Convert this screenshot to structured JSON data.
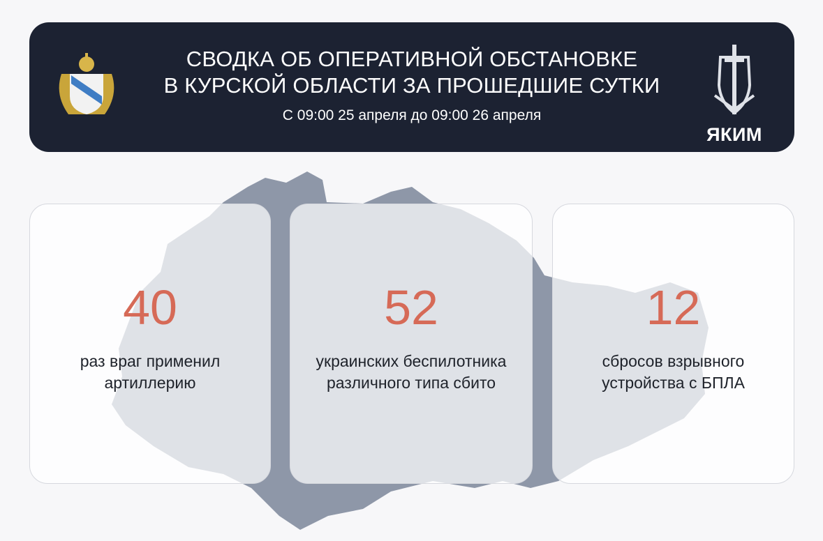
{
  "header": {
    "title_line1": "СВОДКА ОБ ОПЕРАТИВНОЙ ОБСТАНОВКЕ",
    "title_line2": "В КУРСКОЙ ОБЛАСТИ ЗА ПРОШЕДШИЕ СУТКИ",
    "subtitle": "С 09:00 25 апреля до 09:00 26 апреля",
    "right_logo_text": "ЯКИМ",
    "left_logo": "kursk-coat-of-arms",
    "right_logo": "sword-shield-emblem"
  },
  "stats": [
    {
      "value": "40",
      "label_line1": "раз враг применил",
      "label_line2": "артиллерию"
    },
    {
      "value": "52",
      "label_line1": "украинских беспилотника",
      "label_line2": "различного типа сбито"
    },
    {
      "value": "12",
      "label_line1": "сбросов взрывного",
      "label_line2": "устройства с БПЛА"
    }
  ],
  "colors": {
    "header_bg": "#1c2232",
    "accent": "#d66a57",
    "map": "#8e97a8"
  }
}
